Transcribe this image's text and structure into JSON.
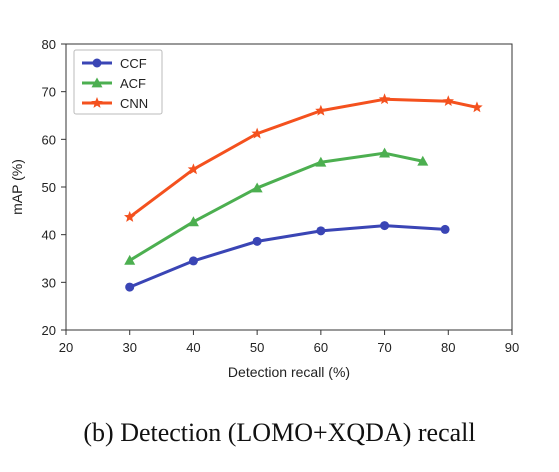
{
  "caption": "(b) Detection (LOMO+XQDA) recall",
  "chart_data": {
    "type": "line",
    "xlabel": "Detection recall (%)",
    "ylabel": "mAP (%)",
    "xlim": [
      20,
      90
    ],
    "ylim": [
      20,
      80
    ],
    "xticks": [
      20,
      30,
      40,
      50,
      60,
      70,
      80,
      90
    ],
    "yticks": [
      20,
      30,
      40,
      50,
      60,
      70,
      80
    ],
    "grid": false,
    "legend_position": "top-left",
    "series": [
      {
        "name": "CCF",
        "color": "#3a45b5",
        "marker": "circle",
        "x": [
          30,
          40,
          50,
          60,
          70,
          79.5
        ],
        "y": [
          29.0,
          34.5,
          38.6,
          40.8,
          41.9,
          41.1
        ]
      },
      {
        "name": "ACF",
        "color": "#4caf50",
        "marker": "triangle",
        "x": [
          30,
          40,
          50,
          60,
          70,
          76
        ],
        "y": [
          34.6,
          42.7,
          49.8,
          55.2,
          57.1,
          55.4
        ]
      },
      {
        "name": "CNN",
        "color": "#f4511e",
        "marker": "star",
        "x": [
          30,
          40,
          50,
          60,
          70,
          80,
          84.5
        ],
        "y": [
          43.7,
          53.7,
          61.2,
          66.0,
          68.4,
          68.0,
          66.7
        ]
      }
    ]
  }
}
